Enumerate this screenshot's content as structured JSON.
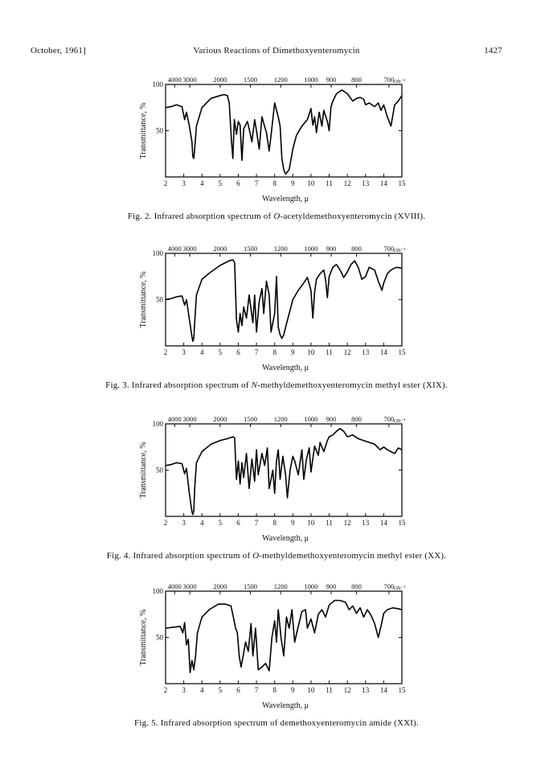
{
  "header": {
    "left": "October, 1961]",
    "center": "Various Reactions of Dimethoxyenteromycin",
    "page": "1427"
  },
  "axes": {
    "y_label": "Transmittance, %",
    "x_label": "Wavelength, μ",
    "y_ticks": [
      "100",
      "50"
    ],
    "bottom_ticks": [
      "2",
      "3",
      "4",
      "5",
      "6",
      "7",
      "8",
      "9",
      "10",
      "11",
      "12",
      "13",
      "14",
      "15"
    ],
    "top_ticks": [
      "4000",
      "3000",
      "2000",
      "1500",
      "1200",
      "1000",
      "900",
      "800",
      "700"
    ],
    "top_unit": "cm⁻¹"
  },
  "figures": [
    {
      "caption": {
        "prefix": "Fig. 2.  Infrared absorption spectrum of ",
        "italic": "O",
        "suffix": "-acetyldemethoxyenteromycin (XVIII)."
      }
    },
    {
      "caption": {
        "prefix": "Fig. 3.  Infrared absorption spectrum of ",
        "italic": "N",
        "suffix": "-methyldemethoxyenteromycin methyl ester (XIX)."
      }
    },
    {
      "caption": {
        "prefix": "Fig. 4.  Infrared absorption spectrum of ",
        "italic": "O",
        "suffix": "-methyldemethoxyenteromycin methyl ester (XX)."
      }
    },
    {
      "caption": {
        "prefix": "Fig. 5.  Infrared absorption spectrum of demethoxyenteromycin amide (XXI).",
        "italic": "",
        "suffix": ""
      }
    }
  ],
  "chart_data": [
    {
      "type": "line",
      "xlabel": "Wavelength, μ",
      "ylabel": "Transmittance, %",
      "xlim": [
        2,
        15
      ],
      "ylim": [
        0,
        100
      ],
      "x": [
        2.0,
        2.3,
        2.6,
        2.9,
        3.05,
        3.15,
        3.3,
        3.45,
        3.5,
        3.55,
        3.6,
        3.7,
        4.0,
        4.5,
        5.0,
        5.2,
        5.4,
        5.5,
        5.62,
        5.7,
        5.78,
        5.9,
        6.0,
        6.1,
        6.2,
        6.3,
        6.5,
        6.6,
        6.75,
        6.9,
        7.0,
        7.15,
        7.3,
        7.4,
        7.55,
        7.7,
        7.8,
        8.0,
        8.2,
        8.3,
        8.4,
        8.5,
        8.6,
        8.8,
        9.0,
        9.2,
        9.5,
        9.8,
        10.0,
        10.1,
        10.2,
        10.3,
        10.45,
        10.6,
        10.7,
        10.8,
        10.9,
        11.0,
        11.1,
        11.2,
        11.4,
        11.7,
        12.0,
        12.3,
        12.5,
        12.7,
        12.9,
        13.0,
        13.2,
        13.5,
        13.7,
        13.85,
        14.0,
        14.2,
        14.4,
        14.6,
        14.8,
        15.0
      ],
      "y": [
        75,
        76,
        78,
        76,
        62,
        70,
        56,
        38,
        22,
        20,
        30,
        55,
        75,
        85,
        88,
        89,
        88,
        80,
        40,
        20,
        62,
        46,
        60,
        56,
        18,
        52,
        60,
        52,
        38,
        62,
        50,
        30,
        65,
        58,
        48,
        28,
        45,
        80,
        65,
        55,
        20,
        8,
        3,
        8,
        30,
        45,
        55,
        62,
        74,
        56,
        65,
        48,
        70,
        55,
        72,
        66,
        60,
        50,
        76,
        82,
        90,
        94,
        90,
        82,
        85,
        86,
        84,
        78,
        80,
        76,
        80,
        72,
        78,
        65,
        55,
        78,
        82,
        88
      ]
    },
    {
      "type": "line",
      "xlabel": "Wavelength, μ",
      "ylabel": "Transmittance, %",
      "xlim": [
        2,
        15
      ],
      "ylim": [
        0,
        100
      ],
      "x": [
        2.0,
        2.3,
        2.6,
        2.9,
        3.05,
        3.15,
        3.3,
        3.45,
        3.5,
        3.55,
        3.6,
        3.7,
        4.0,
        4.5,
        5.0,
        5.3,
        5.5,
        5.7,
        5.8,
        5.9,
        6.0,
        6.1,
        6.2,
        6.3,
        6.45,
        6.6,
        6.8,
        6.9,
        7.0,
        7.15,
        7.3,
        7.4,
        7.55,
        7.7,
        7.8,
        8.0,
        8.1,
        8.2,
        8.3,
        8.4,
        8.5,
        8.6,
        8.8,
        9.0,
        9.3,
        9.6,
        9.8,
        10.0,
        10.1,
        10.2,
        10.3,
        10.5,
        10.7,
        10.8,
        10.9,
        11.0,
        11.2,
        11.4,
        11.6,
        11.8,
        12.0,
        12.2,
        12.4,
        12.6,
        12.8,
        13.0,
        13.2,
        13.5,
        13.7,
        13.9,
        14.0,
        14.2,
        14.4,
        14.7,
        15.0
      ],
      "y": [
        50,
        51,
        53,
        54,
        44,
        50,
        30,
        10,
        5,
        8,
        25,
        55,
        72,
        80,
        87,
        90,
        92,
        93,
        90,
        28,
        15,
        35,
        22,
        42,
        30,
        55,
        25,
        55,
        15,
        48,
        62,
        35,
        70,
        55,
        15,
        35,
        75,
        20,
        12,
        8,
        12,
        20,
        35,
        50,
        60,
        68,
        74,
        60,
        30,
        58,
        72,
        78,
        82,
        72,
        52,
        75,
        85,
        88,
        82,
        74,
        80,
        88,
        92,
        85,
        72,
        75,
        85,
        82,
        70,
        60,
        68,
        78,
        82,
        85,
        84
      ]
    },
    {
      "type": "line",
      "xlabel": "Wavelength, μ",
      "ylabel": "Transmittance, %",
      "xlim": [
        2,
        15
      ],
      "ylim": [
        0,
        100
      ],
      "x": [
        2.0,
        2.3,
        2.6,
        2.9,
        3.05,
        3.15,
        3.3,
        3.45,
        3.5,
        3.55,
        3.6,
        3.7,
        4.0,
        4.5,
        5.0,
        5.4,
        5.7,
        5.8,
        5.9,
        6.0,
        6.1,
        6.2,
        6.3,
        6.45,
        6.6,
        6.75,
        6.9,
        7.0,
        7.1,
        7.3,
        7.45,
        7.6,
        7.7,
        7.9,
        8.0,
        8.1,
        8.2,
        8.3,
        8.45,
        8.6,
        8.7,
        8.85,
        9.0,
        9.1,
        9.3,
        9.5,
        9.6,
        9.75,
        9.9,
        10.0,
        10.2,
        10.4,
        10.5,
        10.7,
        10.9,
        11.0,
        11.2,
        11.4,
        11.6,
        11.8,
        12.0,
        12.3,
        12.6,
        12.9,
        13.2,
        13.5,
        13.8,
        14.0,
        14.2,
        14.4,
        14.6,
        14.8,
        15.0
      ],
      "y": [
        55,
        56,
        58,
        57,
        46,
        52,
        26,
        5,
        2,
        6,
        30,
        58,
        70,
        78,
        82,
        84,
        86,
        85,
        40,
        60,
        35,
        58,
        42,
        68,
        30,
        62,
        38,
        72,
        45,
        68,
        55,
        74,
        30,
        50,
        25,
        60,
        72,
        40,
        65,
        45,
        20,
        50,
        65,
        60,
        45,
        72,
        40,
        62,
        74,
        48,
        76,
        66,
        80,
        70,
        82,
        86,
        88,
        92,
        95,
        92,
        86,
        88,
        84,
        82,
        80,
        78,
        72,
        75,
        72,
        70,
        68,
        74,
        72
      ]
    },
    {
      "type": "line",
      "xlabel": "Wavelength, μ",
      "ylabel": "Transmittance, %",
      "xlim": [
        2,
        15
      ],
      "ylim": [
        0,
        100
      ],
      "x": [
        2.0,
        2.4,
        2.8,
        2.95,
        3.05,
        3.15,
        3.25,
        3.35,
        3.45,
        3.55,
        3.65,
        3.75,
        4.0,
        4.4,
        4.9,
        5.3,
        5.6,
        5.75,
        5.85,
        5.95,
        6.05,
        6.15,
        6.25,
        6.4,
        6.55,
        6.7,
        6.8,
        6.95,
        7.1,
        7.3,
        7.5,
        7.7,
        7.85,
        8.0,
        8.1,
        8.2,
        8.35,
        8.5,
        8.65,
        8.8,
        8.95,
        9.1,
        9.3,
        9.5,
        9.7,
        9.8,
        10.0,
        10.2,
        10.4,
        10.6,
        10.8,
        11.0,
        11.3,
        11.6,
        11.9,
        12.1,
        12.3,
        12.5,
        12.7,
        12.9,
        13.1,
        13.3,
        13.5,
        13.7,
        13.85,
        14.0,
        14.2,
        14.5,
        14.8,
        15.0
      ],
      "y": [
        60,
        61,
        62,
        55,
        66,
        42,
        48,
        12,
        25,
        15,
        30,
        55,
        72,
        80,
        86,
        86,
        84,
        70,
        60,
        55,
        30,
        18,
        28,
        45,
        35,
        65,
        30,
        60,
        15,
        18,
        22,
        14,
        50,
        68,
        45,
        80,
        50,
        30,
        72,
        60,
        80,
        45,
        62,
        78,
        80,
        60,
        70,
        55,
        75,
        80,
        72,
        85,
        90,
        90,
        88,
        80,
        84,
        76,
        82,
        72,
        80,
        74,
        65,
        50,
        62,
        76,
        80,
        82,
        81,
        80
      ]
    }
  ]
}
